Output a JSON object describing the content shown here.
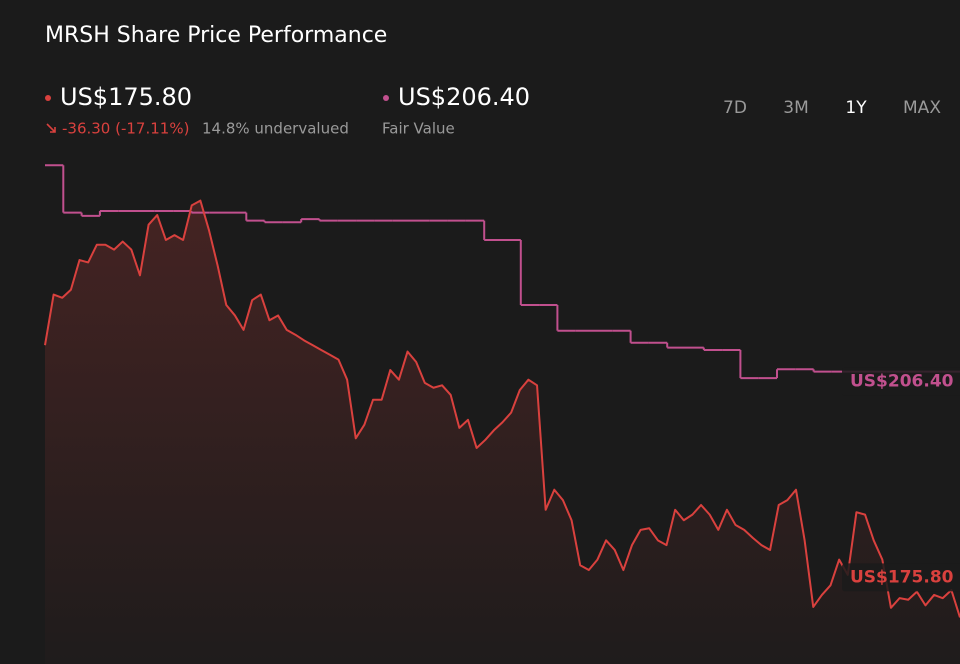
{
  "header": {
    "title": "MRSH Share Price Performance",
    "price": "US$175.80",
    "change": "-36.30 (-17.11%)",
    "valuation": "14.8% undervalued",
    "fair_value": "US$206.40",
    "fair_value_caption": "Fair Value",
    "ranges": [
      "7D",
      "3M",
      "1Y",
      "MAX"
    ],
    "active_range": "1Y"
  },
  "chart_data": {
    "type": "line",
    "ylim": [
      170,
      234
    ],
    "series": [
      {
        "color": "#c1508e",
        "step": true,
        "end_label": "US$206.40",
        "values": [
          232.1,
          226.2,
          225.8,
          226.4,
          226.4,
          226.4,
          226.4,
          226.4,
          226.2,
          226.2,
          226.2,
          225.2,
          225.0,
          225.0,
          225.4,
          225.2,
          225.2,
          225.2,
          225.2,
          225.2,
          225.2,
          225.2,
          225.2,
          225.2,
          222.8,
          222.8,
          214.7,
          214.7,
          211.5,
          211.5,
          211.5,
          211.5,
          210.0,
          210.0,
          209.4,
          209.4,
          209.1,
          209.1,
          205.6,
          205.6,
          206.7,
          206.7,
          206.4,
          206.4,
          206.4,
          206.4,
          206.4,
          206.4,
          206.4,
          206.4
        ]
      },
      {
        "color": "#d9413e",
        "area": true,
        "end_label": "US$175.80",
        "values": [
          209.7,
          216.0,
          215.6,
          216.6,
          220.3,
          220.0,
          222.2,
          222.2,
          221.6,
          222.6,
          221.6,
          218.4,
          224.7,
          225.9,
          222.8,
          223.4,
          222.8,
          227.1,
          227.7,
          224.0,
          219.6,
          214.7,
          213.4,
          211.6,
          215.3,
          216.0,
          212.8,
          213.4,
          211.6,
          211.0,
          210.3,
          209.7,
          209.1,
          208.5,
          207.9,
          205.4,
          198.1,
          199.8,
          202.9,
          202.9,
          206.6,
          205.4,
          208.9,
          207.6,
          205.0,
          204.4,
          204.7,
          203.5,
          199.4,
          200.4,
          196.9,
          197.9,
          199.1,
          200.1,
          201.3,
          204.1,
          205.4,
          204.7,
          189.2,
          191.7,
          190.4,
          187.9,
          182.3,
          181.7,
          183.0,
          185.4,
          184.2,
          181.7,
          184.8,
          186.7,
          186.9,
          185.4,
          184.8,
          189.2,
          187.9,
          188.6,
          189.8,
          188.6,
          186.7,
          189.2,
          187.3,
          186.7,
          185.7,
          184.8,
          184.2,
          189.8,
          190.4,
          191.7,
          185.4,
          177.1,
          178.6,
          179.8,
          183.0,
          181.1,
          188.9,
          188.6,
          185.4,
          183.0,
          177.0,
          178.2,
          178.0,
          179.0,
          177.3,
          178.6,
          178.2,
          179.2,
          175.8
        ]
      }
    ]
  }
}
